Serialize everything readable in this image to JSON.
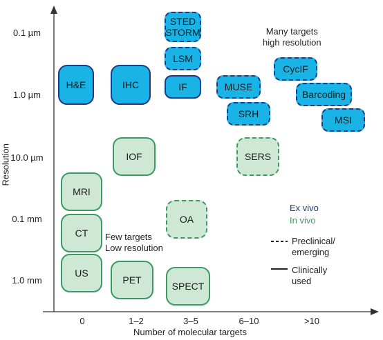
{
  "axes": {
    "x_title": "Number of molecular targets",
    "y_title": "Resolution",
    "x_ticks": [
      "0",
      "1–2",
      "3–5",
      "6–10",
      ">10"
    ],
    "y_ticks": [
      "0.1 µm",
      "1.0 µm",
      "10.0 µm",
      "0.1 mm",
      "1.0 mm"
    ]
  },
  "boxes": {
    "he": "H&E",
    "ihc": "IHC",
    "sted": "STED\nSTORM",
    "lsm": "LSM",
    "if": "IF",
    "muse": "MUSE",
    "srh": "SRH",
    "cycif": "CycIF",
    "barcoding": "Barcoding",
    "msi": "MSI",
    "iof": "IOF",
    "sers": "SERS",
    "mri": "MRI",
    "ct": "CT",
    "us": "US",
    "oa": "OA",
    "pet": "PET",
    "spect": "SPECT"
  },
  "annotations": {
    "top_right": "Many targets\nhigh resolution",
    "bottom_left": "Few targets\nLow resolution"
  },
  "legend": {
    "ex_vivo": "Ex vivo",
    "in_vivo": "In vivo",
    "preclinical": "Preclinical/\nemerging",
    "clinical": "Clinically\nused"
  },
  "colors": {
    "ex_vivo_fill": "#1ab3e6",
    "ex_vivo_border": "#1d3a8a",
    "in_vivo_fill": "#cfe7d5",
    "in_vivo_border": "#3a9a62",
    "ex_vivo_text": "#1d3a8a",
    "in_vivo_text": "#3a9a62"
  }
}
